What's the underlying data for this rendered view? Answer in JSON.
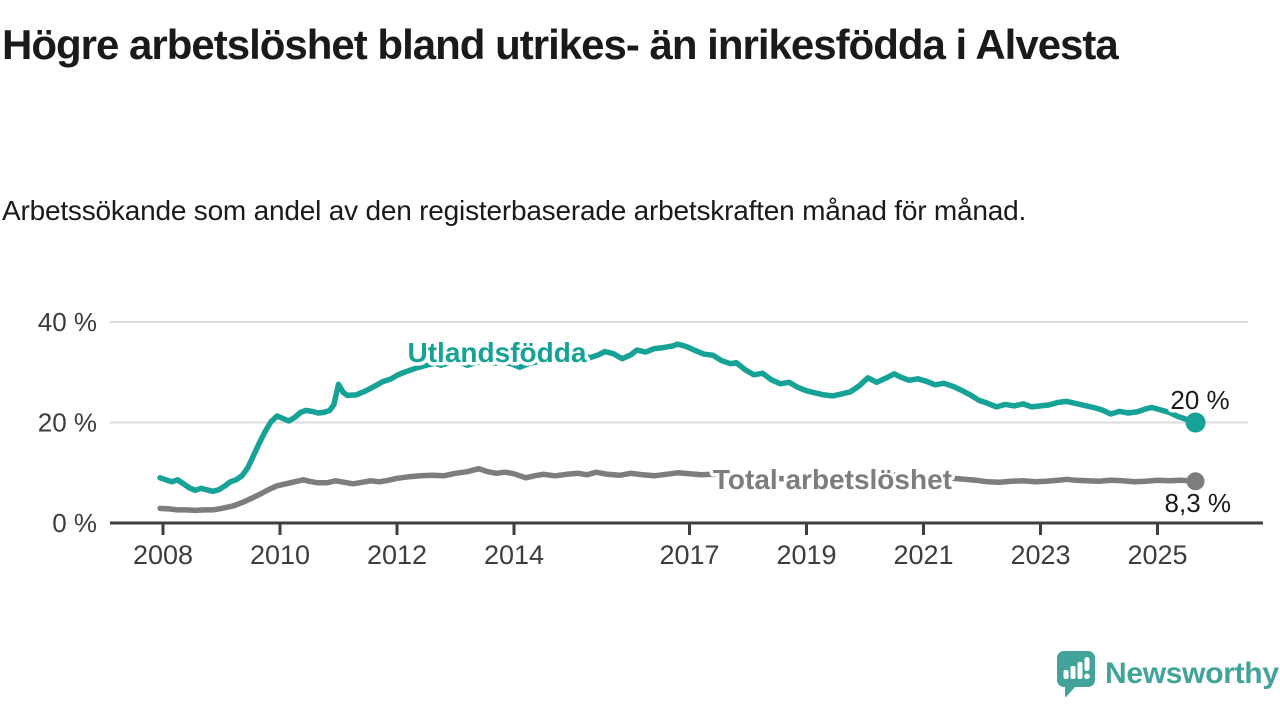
{
  "title": "Högre arbetslöshet bland utrikes- än inrikesfödda i Alvesta",
  "subtitle": "Arbetssökande som andel av den registerbaserade arbetskraften månad för månad.",
  "branding": {
    "logo_text": "Newsworthy",
    "logo_color": "#42a39b",
    "logo_icon": "bar-chart-speech-bubble-icon"
  },
  "colors": {
    "foreign_born_line": "#16a296",
    "total_line": "#7d7d7d",
    "gridline": "#dbdbdb",
    "axis": "#3f3f3f",
    "axis_text": "#3d3d3d",
    "annotation_text": "#1a1a1a",
    "background": "#ffffff"
  },
  "chart_data": {
    "type": "line",
    "title": "Högre arbetslöshet bland utrikes- än inrikesfödda i Alvesta",
    "subtitle": "Arbetssökande som andel av den registerbaserade arbetskraften månad för månad.",
    "grid": "horizontal-only",
    "legend_position": "inline-labels",
    "x_axis": {
      "unit": "year",
      "range": [
        2007.9,
        2026.0
      ],
      "ticks": [
        {
          "value": 2008,
          "label": "2008"
        },
        {
          "value": 2010,
          "label": "2010"
        },
        {
          "value": 2012,
          "label": "2012"
        },
        {
          "value": 2014,
          "label": "2014"
        },
        {
          "value": 2017,
          "label": "2017"
        },
        {
          "value": 2019,
          "label": "2019"
        },
        {
          "value": 2021,
          "label": "2021"
        },
        {
          "value": 2023,
          "label": "2023"
        },
        {
          "value": 2025,
          "label": "2025"
        }
      ]
    },
    "y_axis": {
      "unit": "%",
      "range": [
        0,
        43
      ],
      "ticks": [
        {
          "value": 0,
          "label": "0 %"
        },
        {
          "value": 20,
          "label": "20 %"
        },
        {
          "value": 40,
          "label": "40 %"
        }
      ]
    },
    "series": [
      {
        "name": "Utlandsfödda",
        "color": "#16a296",
        "line_width": 5.5,
        "end_dot_radius": 10,
        "end_value_label": "20 %",
        "points": [
          [
            2007.95,
            9.0
          ],
          [
            2008.05,
            8.6
          ],
          [
            2008.15,
            8.2
          ],
          [
            2008.25,
            8.6
          ],
          [
            2008.35,
            7.8
          ],
          [
            2008.45,
            7.0
          ],
          [
            2008.55,
            6.5
          ],
          [
            2008.65,
            6.9
          ],
          [
            2008.75,
            6.6
          ],
          [
            2008.85,
            6.3
          ],
          [
            2008.95,
            6.6
          ],
          [
            2009.05,
            7.3
          ],
          [
            2009.15,
            8.2
          ],
          [
            2009.25,
            8.6
          ],
          [
            2009.35,
            9.4
          ],
          [
            2009.45,
            11.0
          ],
          [
            2009.55,
            13.5
          ],
          [
            2009.65,
            16.0
          ],
          [
            2009.75,
            18.3
          ],
          [
            2009.85,
            20.2
          ],
          [
            2009.95,
            21.3
          ],
          [
            2010.05,
            20.8
          ],
          [
            2010.15,
            20.3
          ],
          [
            2010.25,
            21.0
          ],
          [
            2010.35,
            22.0
          ],
          [
            2010.45,
            22.4
          ],
          [
            2010.55,
            22.2
          ],
          [
            2010.65,
            21.9
          ],
          [
            2010.75,
            22.0
          ],
          [
            2010.85,
            22.4
          ],
          [
            2010.92,
            23.5
          ],
          [
            2011.0,
            27.6
          ],
          [
            2011.08,
            26.0
          ],
          [
            2011.15,
            25.4
          ],
          [
            2011.3,
            25.5
          ],
          [
            2011.45,
            26.2
          ],
          [
            2011.6,
            27.1
          ],
          [
            2011.75,
            28.1
          ],
          [
            2011.9,
            28.7
          ],
          [
            2012.0,
            29.4
          ],
          [
            2012.1,
            29.9
          ],
          [
            2012.2,
            30.3
          ],
          [
            2012.35,
            30.9
          ],
          [
            2012.5,
            31.4
          ],
          [
            2012.65,
            31.8
          ],
          [
            2012.75,
            31.4
          ],
          [
            2012.9,
            31.9
          ],
          [
            2013.05,
            32.2
          ],
          [
            2013.2,
            31.4
          ],
          [
            2013.35,
            31.9
          ],
          [
            2013.5,
            32.2
          ],
          [
            2013.65,
            31.8
          ],
          [
            2013.8,
            32.0
          ],
          [
            2013.95,
            31.7
          ],
          [
            2014.1,
            31.0
          ],
          [
            2014.25,
            31.7
          ],
          [
            2014.4,
            32.1
          ],
          [
            2014.55,
            32.5
          ],
          [
            2014.7,
            32.2
          ],
          [
            2014.85,
            32.7
          ],
          [
            2015.0,
            33.2
          ],
          [
            2015.1,
            33.9
          ],
          [
            2015.2,
            33.2
          ],
          [
            2015.3,
            32.9
          ],
          [
            2015.45,
            33.5
          ],
          [
            2015.55,
            34.1
          ],
          [
            2015.7,
            33.7
          ],
          [
            2015.85,
            32.7
          ],
          [
            2016.0,
            33.5
          ],
          [
            2016.1,
            34.4
          ],
          [
            2016.25,
            34.0
          ],
          [
            2016.4,
            34.7
          ],
          [
            2016.55,
            34.9
          ],
          [
            2016.7,
            35.2
          ],
          [
            2016.8,
            35.6
          ],
          [
            2016.95,
            35.1
          ],
          [
            2017.1,
            34.3
          ],
          [
            2017.25,
            33.6
          ],
          [
            2017.4,
            33.4
          ],
          [
            2017.55,
            32.3
          ],
          [
            2017.7,
            31.7
          ],
          [
            2017.8,
            31.9
          ],
          [
            2017.95,
            30.5
          ],
          [
            2018.1,
            29.5
          ],
          [
            2018.25,
            29.8
          ],
          [
            2018.4,
            28.5
          ],
          [
            2018.55,
            27.7
          ],
          [
            2018.7,
            28.0
          ],
          [
            2018.85,
            27.0
          ],
          [
            2019.0,
            26.3
          ],
          [
            2019.15,
            25.9
          ],
          [
            2019.3,
            25.5
          ],
          [
            2019.45,
            25.3
          ],
          [
            2019.6,
            25.7
          ],
          [
            2019.75,
            26.1
          ],
          [
            2019.9,
            27.3
          ],
          [
            2020.05,
            28.9
          ],
          [
            2020.2,
            28.0
          ],
          [
            2020.35,
            28.8
          ],
          [
            2020.5,
            29.7
          ],
          [
            2020.6,
            29.1
          ],
          [
            2020.75,
            28.4
          ],
          [
            2020.9,
            28.7
          ],
          [
            2021.05,
            28.2
          ],
          [
            2021.2,
            27.5
          ],
          [
            2021.35,
            27.8
          ],
          [
            2021.5,
            27.2
          ],
          [
            2021.65,
            26.4
          ],
          [
            2021.8,
            25.5
          ],
          [
            2021.95,
            24.4
          ],
          [
            2022.1,
            23.8
          ],
          [
            2022.25,
            23.1
          ],
          [
            2022.4,
            23.6
          ],
          [
            2022.55,
            23.3
          ],
          [
            2022.7,
            23.7
          ],
          [
            2022.85,
            23.1
          ],
          [
            2023.0,
            23.3
          ],
          [
            2023.15,
            23.5
          ],
          [
            2023.3,
            24.0
          ],
          [
            2023.45,
            24.2
          ],
          [
            2023.6,
            23.8
          ],
          [
            2023.75,
            23.4
          ],
          [
            2023.9,
            23.0
          ],
          [
            2024.05,
            22.5
          ],
          [
            2024.2,
            21.7
          ],
          [
            2024.35,
            22.2
          ],
          [
            2024.5,
            21.9
          ],
          [
            2024.65,
            22.1
          ],
          [
            2024.8,
            22.7
          ],
          [
            2024.9,
            23.0
          ],
          [
            2025.05,
            22.5
          ],
          [
            2025.2,
            22.0
          ],
          [
            2025.35,
            21.2
          ],
          [
            2025.5,
            20.6
          ],
          [
            2025.65,
            20.0
          ]
        ]
      },
      {
        "name": "Total arbetslöshet",
        "color": "#7d7d7d",
        "line_width": 5.5,
        "end_dot_radius": 9,
        "end_value_label": "8,3 %",
        "points": [
          [
            2007.95,
            2.9
          ],
          [
            2008.1,
            2.8
          ],
          [
            2008.25,
            2.6
          ],
          [
            2008.4,
            2.6
          ],
          [
            2008.55,
            2.5
          ],
          [
            2008.7,
            2.6
          ],
          [
            2008.85,
            2.6
          ],
          [
            2009.0,
            2.9
          ],
          [
            2009.2,
            3.4
          ],
          [
            2009.4,
            4.3
          ],
          [
            2009.6,
            5.4
          ],
          [
            2009.8,
            6.6
          ],
          [
            2009.95,
            7.4
          ],
          [
            2010.1,
            7.8
          ],
          [
            2010.25,
            8.2
          ],
          [
            2010.4,
            8.6
          ],
          [
            2010.5,
            8.3
          ],
          [
            2010.65,
            8.0
          ],
          [
            2010.8,
            8.0
          ],
          [
            2010.95,
            8.4
          ],
          [
            2011.1,
            8.1
          ],
          [
            2011.25,
            7.8
          ],
          [
            2011.4,
            8.1
          ],
          [
            2011.55,
            8.4
          ],
          [
            2011.7,
            8.2
          ],
          [
            2011.85,
            8.5
          ],
          [
            2012.0,
            8.9
          ],
          [
            2012.2,
            9.2
          ],
          [
            2012.4,
            9.4
          ],
          [
            2012.6,
            9.5
          ],
          [
            2012.8,
            9.4
          ],
          [
            2013.0,
            9.9
          ],
          [
            2013.2,
            10.2
          ],
          [
            2013.4,
            10.8
          ],
          [
            2013.55,
            10.2
          ],
          [
            2013.7,
            9.9
          ],
          [
            2013.85,
            10.1
          ],
          [
            2014.0,
            9.8
          ],
          [
            2014.2,
            9.0
          ],
          [
            2014.35,
            9.4
          ],
          [
            2014.5,
            9.7
          ],
          [
            2014.7,
            9.4
          ],
          [
            2014.9,
            9.7
          ],
          [
            2015.1,
            9.9
          ],
          [
            2015.25,
            9.6
          ],
          [
            2015.4,
            10.1
          ],
          [
            2015.6,
            9.7
          ],
          [
            2015.8,
            9.5
          ],
          [
            2016.0,
            9.9
          ],
          [
            2016.2,
            9.6
          ],
          [
            2016.4,
            9.4
          ],
          [
            2016.6,
            9.7
          ],
          [
            2016.8,
            10.0
          ],
          [
            2017.0,
            9.8
          ],
          [
            2017.2,
            9.6
          ],
          [
            2017.4,
            9.7
          ],
          [
            2017.7,
            9.5
          ],
          [
            2018.0,
            9.2
          ],
          [
            2018.3,
            9.0
          ],
          [
            2018.6,
            8.8
          ],
          [
            2018.9,
            8.6
          ],
          [
            2019.2,
            8.5
          ],
          [
            2019.5,
            8.4
          ],
          [
            2019.8,
            8.6
          ],
          [
            2020.1,
            9.1
          ],
          [
            2020.4,
            9.5
          ],
          [
            2020.7,
            9.6
          ],
          [
            2021.0,
            9.3
          ],
          [
            2021.3,
            9.1
          ],
          [
            2021.6,
            8.8
          ],
          [
            2021.9,
            8.5
          ],
          [
            2022.1,
            8.2
          ],
          [
            2022.3,
            8.1
          ],
          [
            2022.5,
            8.3
          ],
          [
            2022.7,
            8.4
          ],
          [
            2022.9,
            8.2
          ],
          [
            2023.1,
            8.3
          ],
          [
            2023.3,
            8.5
          ],
          [
            2023.45,
            8.7
          ],
          [
            2023.6,
            8.5
          ],
          [
            2023.8,
            8.4
          ],
          [
            2024.0,
            8.3
          ],
          [
            2024.2,
            8.5
          ],
          [
            2024.4,
            8.4
          ],
          [
            2024.6,
            8.2
          ],
          [
            2024.8,
            8.3
          ],
          [
            2025.0,
            8.5
          ],
          [
            2025.2,
            8.4
          ],
          [
            2025.4,
            8.5
          ],
          [
            2025.65,
            8.3
          ]
        ]
      }
    ],
    "annotations": [
      {
        "name": "series-label-foreign-born",
        "text": "Utlandsfödda",
        "year": 2012.18,
        "value": 32.0,
        "color": "#16a296",
        "bold": true,
        "size": 28
      },
      {
        "name": "series-label-total",
        "text": "Total arbetslöshet",
        "year": 2017.4,
        "value": 6.8,
        "color": "#7d7d7d",
        "bold": true,
        "size": 28
      },
      {
        "name": "end-value-foreign-born",
        "text": "20 %",
        "year": 2025.22,
        "value": 22.7,
        "color": "#1a1a1a",
        "bold": false,
        "size": 26
      },
      {
        "name": "end-value-total",
        "text": "8,3 %",
        "year": 2025.12,
        "value": 2.2,
        "color": "#1a1a1a",
        "bold": false,
        "size": 26
      }
    ]
  }
}
